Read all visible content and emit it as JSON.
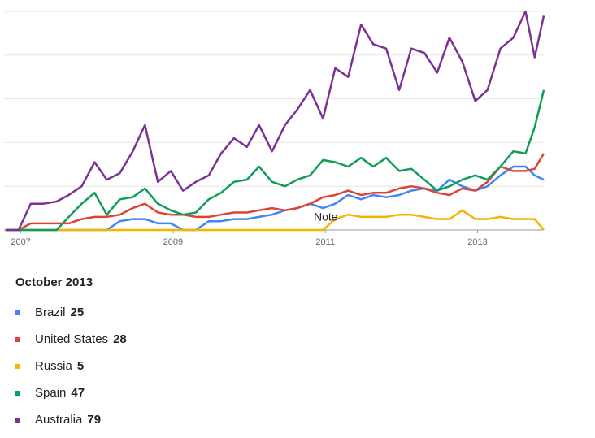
{
  "chart_data": {
    "type": "line",
    "x": [
      2006.8,
      2006.97,
      2007.13,
      2007.3,
      2007.47,
      2007.63,
      2007.8,
      2007.97,
      2008.13,
      2008.3,
      2008.47,
      2008.63,
      2008.8,
      2008.97,
      2009.13,
      2009.3,
      2009.47,
      2009.63,
      2009.8,
      2009.97,
      2010.13,
      2010.3,
      2010.47,
      2010.63,
      2010.8,
      2010.97,
      2011.13,
      2011.3,
      2011.47,
      2011.63,
      2011.8,
      2011.97,
      2012.13,
      2012.3,
      2012.47,
      2012.63,
      2012.8,
      2012.97,
      2013.13,
      2013.3,
      2013.47,
      2013.63,
      2013.75,
      2013.87
    ],
    "series": [
      {
        "name": "Brazil",
        "color": "#4285f4",
        "values": [
          0,
          0,
          0,
          0,
          0,
          0,
          0,
          0,
          0,
          4,
          5,
          5,
          3,
          3,
          0,
          0,
          4,
          4,
          5,
          5,
          6,
          7,
          9,
          10,
          12,
          10,
          12,
          16,
          14,
          16,
          15,
          16,
          18,
          19,
          18,
          23,
          20,
          18,
          20,
          25,
          29,
          29,
          25,
          23
        ]
      },
      {
        "name": "United States",
        "color": "#db4437",
        "values": [
          0,
          0,
          3,
          3,
          3,
          3,
          5,
          6,
          6,
          7,
          10,
          12,
          8,
          7,
          7,
          6,
          6,
          7,
          8,
          8,
          9,
          10,
          9,
          10,
          12,
          15,
          16,
          18,
          16,
          17,
          17,
          19,
          20,
          19,
          17,
          16,
          19,
          18,
          22,
          29,
          27,
          27,
          28,
          35
        ]
      },
      {
        "name": "Russia",
        "color": "#f4b400",
        "values": [
          0,
          0,
          0,
          0,
          0,
          0,
          0,
          0,
          0,
          0,
          0,
          0,
          0,
          0,
          0,
          0,
          0,
          0,
          0,
          0,
          0,
          0,
          0,
          0,
          0,
          0,
          5,
          7,
          6,
          6,
          6,
          7,
          7,
          6,
          5,
          5,
          9,
          5,
          5,
          6,
          5,
          5,
          5,
          0
        ]
      },
      {
        "name": "Spain",
        "color": "#0f9d58",
        "values": [
          0,
          0,
          0,
          0,
          0,
          6,
          12,
          17,
          7,
          14,
          15,
          19,
          12,
          9,
          7,
          8,
          14,
          17,
          22,
          23,
          29,
          22,
          20,
          23,
          25,
          32,
          31,
          29,
          33,
          29,
          33,
          27,
          28,
          23,
          18,
          20,
          23,
          25,
          23,
          29,
          36,
          35,
          47,
          64
        ]
      },
      {
        "name": "Australia",
        "color": "#7b3294",
        "values": [
          0,
          0,
          12,
          12,
          13,
          16,
          20,
          31,
          23,
          26,
          36,
          48,
          22,
          27,
          18,
          22,
          25,
          35,
          42,
          38,
          48,
          36,
          48,
          55,
          64,
          51,
          74,
          70,
          94,
          85,
          83,
          64,
          83,
          81,
          72,
          88,
          77,
          59,
          64,
          83,
          88,
          100,
          79,
          98
        ]
      }
    ],
    "xlim": [
      2006.78,
      2013.87
    ],
    "xticks": [
      2007,
      2009,
      2011,
      2013
    ],
    "ylim": [
      0,
      100
    ],
    "yticks": [
      0,
      20,
      40,
      60,
      80,
      100
    ],
    "grid": true,
    "annotation": "Note",
    "legend_title": "October 2013",
    "legend_index": 42
  }
}
